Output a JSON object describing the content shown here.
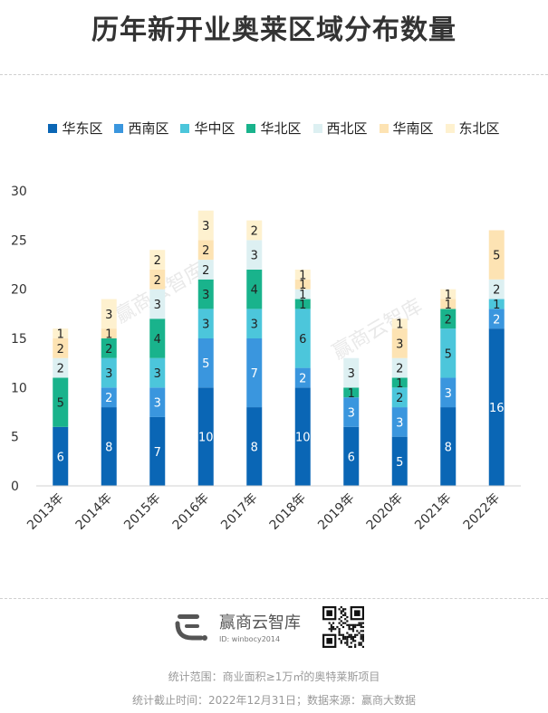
{
  "title": "历年新开业奥莱区域分布数量",
  "chart_data": {
    "type": "bar",
    "stacked": true,
    "categories": [
      "2013年",
      "2014年",
      "2015年",
      "2016年",
      "2017年",
      "2018年",
      "2019年",
      "2020年",
      "2021年",
      "2022年"
    ],
    "series": [
      {
        "name": "华东区",
        "color": "#0a66b5",
        "values": [
          6,
          8,
          7,
          10,
          8,
          10,
          6,
          5,
          8,
          16
        ]
      },
      {
        "name": "西南区",
        "color": "#3a96de",
        "values": [
          0,
          2,
          3,
          5,
          7,
          2,
          3,
          3,
          3,
          2
        ]
      },
      {
        "name": "华中区",
        "color": "#4cc6db",
        "values": [
          0,
          3,
          3,
          3,
          3,
          6,
          0,
          2,
          5,
          1
        ]
      },
      {
        "name": "华北区",
        "color": "#19b38c",
        "values": [
          5,
          2,
          4,
          3,
          4,
          1,
          1,
          1,
          2,
          0
        ]
      },
      {
        "name": "西北区",
        "color": "#ddf0f2",
        "values": [
          2,
          0,
          3,
          2,
          3,
          1,
          3,
          2,
          0,
          2
        ]
      },
      {
        "name": "华南区",
        "color": "#fde3b3",
        "values": [
          2,
          1,
          2,
          2,
          0,
          1,
          0,
          3,
          1,
          5
        ]
      },
      {
        "name": "东北区",
        "color": "#fef1cf",
        "values": [
          1,
          3,
          2,
          3,
          2,
          1,
          0,
          1,
          1,
          0
        ]
      }
    ],
    "ylim": [
      0,
      30
    ],
    "yticks": [
      0,
      5,
      10,
      15,
      20,
      25,
      30
    ],
    "legend": "top",
    "xlabel": "",
    "ylabel": ""
  },
  "watermark": "赢商云智库",
  "footer": {
    "brand_name": "赢商云智库",
    "brand_id": "ID: winbocy2014",
    "scope_note": "统计范围：商业面积≥1万㎡的奥特莱斯项目",
    "date_note": "统计截止时间：2022年12月31日；数据来源：赢商大数据"
  }
}
